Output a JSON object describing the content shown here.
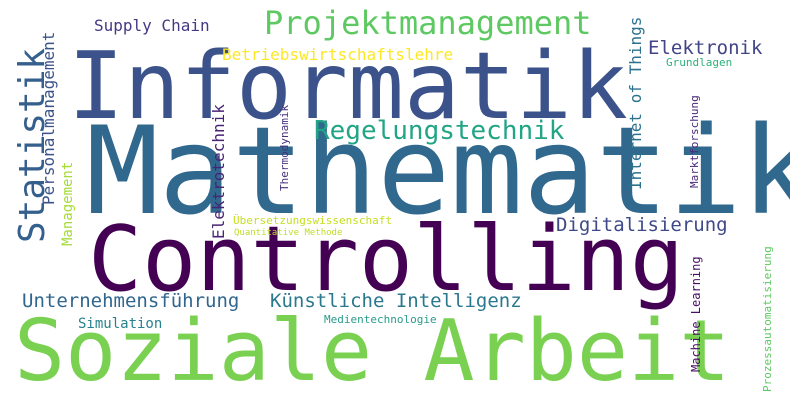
{
  "words": {
    "mathematik": {
      "text": "Mathematik",
      "color": "#31688e"
    },
    "informatik": {
      "text": "Informatik",
      "color": "#3b528b"
    },
    "controlling": {
      "text": "Controlling",
      "color": "#440154"
    },
    "soziale_arbeit": {
      "text": "Soziale Arbeit",
      "color": "#7ad151"
    },
    "projektmanagement": {
      "text": "Projektmanagement",
      "color": "#5ec962"
    },
    "regelungstechnik": {
      "text": "Regelungstechnik",
      "color": "#21a585"
    },
    "statistik": {
      "text": "Statistik",
      "color": "#355f8d"
    },
    "digitalisierung": {
      "text": "Digitalisierung",
      "color": "#3e4989"
    },
    "kuenstliche_intelligenz": {
      "text": "Künstliche Intelligenz",
      "color": "#2a788e"
    },
    "unternehmensfuehrung": {
      "text": "Unternehmensführung",
      "color": "#31668e"
    },
    "elektronik": {
      "text": "Elektronik",
      "color": "#414487"
    },
    "supply_chain": {
      "text": "Supply Chain",
      "color": "#443983"
    },
    "betriebswirtschaftslehre": {
      "text": "Betriebswirtschaftslehre",
      "color": "#fde725"
    },
    "grundlagen": {
      "text": "Grundlagen",
      "color": "#2db27d"
    },
    "simulation": {
      "text": "Simulation",
      "color": "#26828e"
    },
    "medientechnologie": {
      "text": "Medientechnologie",
      "color": "#2a9b8a"
    },
    "uebersetzungswissenschaft": {
      "text": "Übersetzungswissenschaft",
      "color": "#c5e021"
    },
    "quantitative_methode": {
      "text": "Quantitative Methode",
      "color": "#bddf26"
    },
    "personalmanagement": {
      "text": "Personalmanagement",
      "color": "#3b528b"
    },
    "management": {
      "text": "Management",
      "color": "#a5db36"
    },
    "elektrotechnik": {
      "text": "Elektrotechnik",
      "color": "#482475"
    },
    "thermodynamik": {
      "text": "Thermodynamik",
      "color": "#46337e"
    },
    "internet_of_things": {
      "text": "Internet of Things",
      "color": "#2c728e"
    },
    "marktforschung": {
      "text": "Marktforschung",
      "color": "#482878"
    },
    "machine_learning": {
      "text": "Machine Learning",
      "color": "#471063"
    },
    "prozessautomatisierung": {
      "text": "Prozessautomatisierung",
      "color": "#5ec962"
    }
  }
}
